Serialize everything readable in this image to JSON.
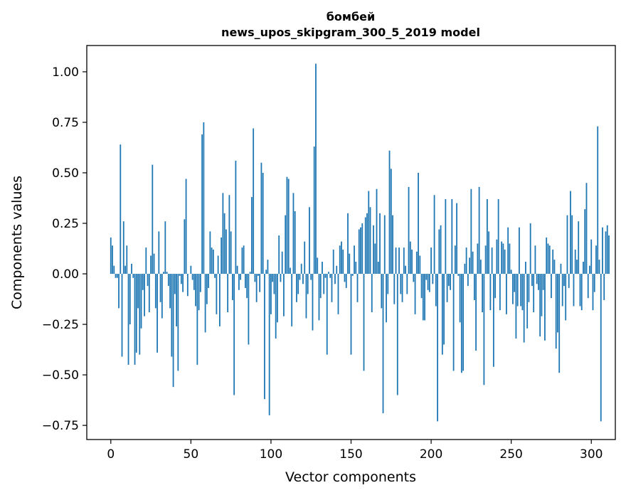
{
  "chart_data": {
    "type": "bar",
    "title": "бомбей",
    "subtitle": "news_upos_skipgram_300_5_2019 model",
    "xlabel": "Vector components",
    "ylabel": "Components values",
    "xlim": [
      -15,
      315
    ],
    "ylim": [
      -0.82,
      1.13
    ],
    "xticks": [
      0,
      50,
      100,
      150,
      200,
      250,
      300
    ],
    "yticks": [
      -0.75,
      -0.5,
      -0.25,
      0.0,
      0.25,
      0.5,
      0.75,
      1.0
    ],
    "ytick_labels": [
      "−0.75",
      "−0.50",
      "−0.25",
      "0.00",
      "0.25",
      "0.50",
      "0.75",
      "1.00"
    ],
    "xtick_labels": [
      "0",
      "50",
      "100",
      "150",
      "200",
      "250",
      "300"
    ],
    "bar_color": "#1f77b4",
    "values": [
      0.18,
      0.14,
      0.04,
      -0.02,
      -0.02,
      -0.17,
      0.64,
      -0.41,
      0.26,
      0.04,
      0.14,
      -0.45,
      -0.25,
      0.05,
      -0.02,
      -0.45,
      -0.39,
      -0.17,
      -0.4,
      -0.27,
      -0.08,
      -0.21,
      0.13,
      -0.06,
      -0.19,
      0.09,
      0.54,
      0.1,
      -0.17,
      -0.39,
      0.21,
      -0.14,
      -0.22,
      0.01,
      0.26,
      0.01,
      -0.06,
      -0.17,
      -0.41,
      -0.56,
      -0.1,
      -0.26,
      -0.48,
      -0.01,
      -0.05,
      -0.09,
      0.27,
      0.47,
      -0.11,
      0.0,
      0.04,
      -0.03,
      -0.08,
      -0.16,
      -0.45,
      -0.18,
      -0.09,
      0.69,
      0.75,
      -0.29,
      -0.15,
      -0.07,
      0.21,
      0.13,
      0.12,
      -0.02,
      -0.2,
      0.09,
      -0.26,
      0.18,
      0.4,
      0.3,
      0.22,
      -0.19,
      0.39,
      0.21,
      -0.13,
      -0.6,
      0.56,
      0.04,
      -0.08,
      -0.03,
      0.13,
      0.14,
      -0.07,
      -0.12,
      -0.35,
      0.01,
      0.38,
      0.72,
      -0.04,
      -0.14,
      -0.01,
      -0.09,
      0.55,
      0.5,
      -0.62,
      0.02,
      0.07,
      -0.7,
      -0.2,
      -0.04,
      -0.1,
      -0.32,
      -0.24,
      0.19,
      -0.04,
      0.11,
      -0.21,
      0.29,
      0.48,
      0.47,
      0.03,
      -0.26,
      0.4,
      0.31,
      -0.14,
      -0.1,
      -0.03,
      0.05,
      -0.05,
      0.16,
      -0.22,
      -0.1,
      0.33,
      -0.03,
      -0.28,
      0.63,
      1.04,
      0.08,
      -0.23,
      -0.12,
      0.06,
      -0.1,
      -0.02,
      -0.4,
      0.01,
      -0.02,
      -0.14,
      0.12,
      -0.05,
      0.04,
      -0.2,
      0.14,
      0.16,
      0.12,
      -0.04,
      -0.07,
      0.3,
      0.1,
      -0.4,
      -0.01,
      0.14,
      0.06,
      -0.14,
      0.22,
      0.23,
      0.25,
      -0.48,
      0.28,
      0.3,
      0.41,
      0.33,
      -0.19,
      0.24,
      0.15,
      0.42,
      0.06,
      0.3,
      -0.17,
      -0.69,
      0.29,
      -0.24,
      -0.1,
      0.61,
      0.52,
      0.29,
      -0.15,
      0.13,
      -0.6,
      0.13,
      -0.1,
      -0.14,
      0.13,
      0.04,
      -0.1,
      0.43,
      0.16,
      0.12,
      -0.04,
      -0.2,
      0.11,
      0.5,
      0.09,
      -0.12,
      -0.23,
      -0.23,
      -0.03,
      -0.08,
      -0.09,
      0.13,
      -0.05,
      0.39,
      -0.16,
      -0.73,
      0.22,
      0.24,
      -0.4,
      -0.35,
      0.37,
      -0.14,
      -0.06,
      -0.08,
      0.37,
      -0.48,
      0.14,
      0.35,
      -0.01,
      -0.24,
      -0.49,
      -0.48,
      0.05,
      0.13,
      -0.06,
      0.08,
      0.42,
      0.11,
      -0.13,
      -0.38,
      0.15,
      0.43,
      0.07,
      -0.19,
      -0.55,
      0.14,
      0.37,
      0.21,
      -0.18,
      0.13,
      -0.46,
      -0.12,
      0.17,
      0.37,
      -0.18,
      0.16,
      0.15,
      0.12,
      -0.2,
      0.23,
      0.15,
      0.02,
      -0.15,
      -0.09,
      -0.32,
      -0.16,
      0.23,
      -0.16,
      -0.18,
      -0.34,
      0.06,
      -0.27,
      -0.14,
      0.25,
      -0.06,
      -0.19,
      0.14,
      -0.05,
      -0.08,
      -0.31,
      -0.21,
      -0.08,
      -0.33,
      0.18,
      0.15,
      0.14,
      -0.12,
      0.12,
      0.07,
      -0.37,
      -0.29,
      -0.49,
      0.05,
      -0.16,
      -0.06,
      -0.23,
      0.29,
      -0.07,
      0.41,
      0.29,
      -0.16,
      0.12,
      0.07,
      0.26,
      -0.16,
      -0.18,
      0.06,
      0.32,
      0.45,
      -0.12,
      0.04,
      0.17,
      -0.18,
      -0.09,
      0.14,
      0.73,
      0.07,
      -0.73,
      0.23,
      -0.13,
      0.21,
      0.24,
      0.19
    ]
  }
}
